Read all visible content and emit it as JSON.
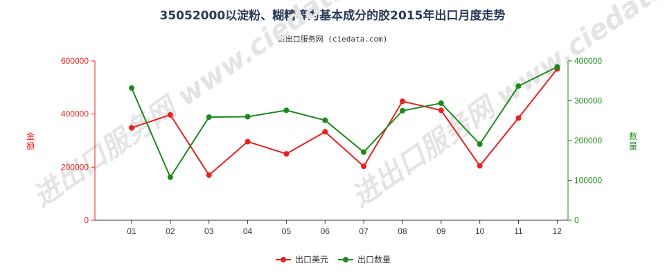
{
  "header": {
    "title": "35052000以淀粉、糊精等为基本成分的胶2015年出口月度走势",
    "subtitle": "进出口服务网 (ciedata.com)"
  },
  "watermark": "进出口服务网 www.ciedata.com",
  "chart_data": {
    "type": "line",
    "categories": [
      "01",
      "02",
      "03",
      "04",
      "05",
      "06",
      "07",
      "08",
      "09",
      "10",
      "11",
      "12"
    ],
    "ylabel_left": "金额",
    "ylabel_right": "数量",
    "ylim_left": [
      0,
      600000
    ],
    "ylim_right": [
      0,
      400000
    ],
    "yticks_left": [
      0,
      200000,
      400000,
      600000
    ],
    "yticks_right": [
      0,
      100000,
      200000,
      300000,
      400000
    ],
    "yticks_left_labels": [
      "0",
      "200000",
      "400000",
      "600000"
    ],
    "yticks_right_labels": [
      "0",
      "100000",
      "200000",
      "300000",
      "400000"
    ],
    "series": [
      {
        "name": "出口美元",
        "axis": "left",
        "color": "#e8201e",
        "values": [
          348000,
          397000,
          170000,
          296000,
          250000,
          333000,
          203000,
          448000,
          414000,
          205000,
          385000,
          570000
        ]
      },
      {
        "name": "出口数量",
        "axis": "right",
        "color": "#1a8a1a",
        "values": [
          332000,
          108000,
          259000,
          260000,
          276000,
          251000,
          171000,
          275000,
          294000,
          191000,
          337000,
          385000
        ]
      }
    ],
    "grid": false,
    "legend": "bottom-center"
  }
}
